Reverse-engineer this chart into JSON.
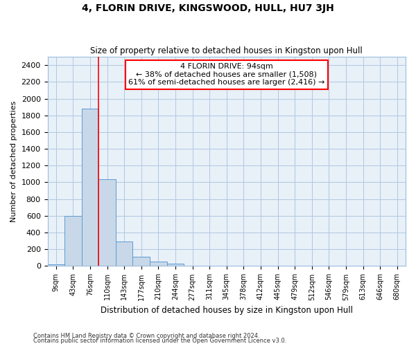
{
  "title": "4, FLORIN DRIVE, KINGSWOOD, HULL, HU7 3JH",
  "subtitle": "Size of property relative to detached houses in Kingston upon Hull",
  "xlabel": "Distribution of detached houses by size in Kingston upon Hull",
  "ylabel": "Number of detached properties",
  "bin_labels": [
    "9sqm",
    "43sqm",
    "76sqm",
    "110sqm",
    "143sqm",
    "177sqm",
    "210sqm",
    "244sqm",
    "277sqm",
    "311sqm",
    "345sqm",
    "378sqm",
    "412sqm",
    "445sqm",
    "479sqm",
    "512sqm",
    "546sqm",
    "579sqm",
    "613sqm",
    "646sqm",
    "680sqm"
  ],
  "bar_heights": [
    20,
    600,
    1880,
    1035,
    290,
    115,
    50,
    30,
    0,
    0,
    0,
    0,
    0,
    0,
    0,
    0,
    0,
    0,
    0,
    0,
    0
  ],
  "bar_color": "#c8d8e8",
  "bar_edge_color": "#5b9bd5",
  "red_line_x": 2.5,
  "ylim": [
    0,
    2500
  ],
  "yticks": [
    0,
    200,
    400,
    600,
    800,
    1000,
    1200,
    1400,
    1600,
    1800,
    2000,
    2200,
    2400
  ],
  "annotation_title": "4 FLORIN DRIVE: 94sqm",
  "annotation_line1": "← 38% of detached houses are smaller (1,508)",
  "annotation_line2": "61% of semi-detached houses are larger (2,416) →",
  "footer_line1": "Contains HM Land Registry data © Crown copyright and database right 2024.",
  "footer_line2": "Contains public sector information licensed under the Open Government Licence v3.0.",
  "bg_color": "#e8f0f8",
  "grid_color": "#b0c8e0"
}
